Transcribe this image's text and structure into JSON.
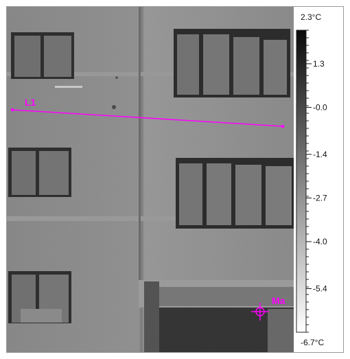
{
  "colors": {
    "marker": "#ff00ff",
    "wall": "#8f8f8f",
    "window_frame": "#2e2e2e",
    "scale_top": "#0a0a0a",
    "scale_bottom": "#ffffff"
  },
  "markers": {
    "line_label": "L1",
    "max_label": "Ma"
  },
  "scale": {
    "max": "2.3°C",
    "min": "-6.7°C",
    "ticks": [
      {
        "label": "1.3",
        "value": 1.3
      },
      {
        "label": "-0.0",
        "value": 0.0
      },
      {
        "label": "-1.4",
        "value": -1.4
      },
      {
        "label": "-2.7",
        "value": -2.7
      },
      {
        "label": "-4.0",
        "value": -4.0
      },
      {
        "label": "-5.4",
        "value": -5.4
      }
    ],
    "range": [
      -6.7,
      2.3
    ]
  },
  "icons": {
    "crosshair": "crosshair-icon"
  }
}
